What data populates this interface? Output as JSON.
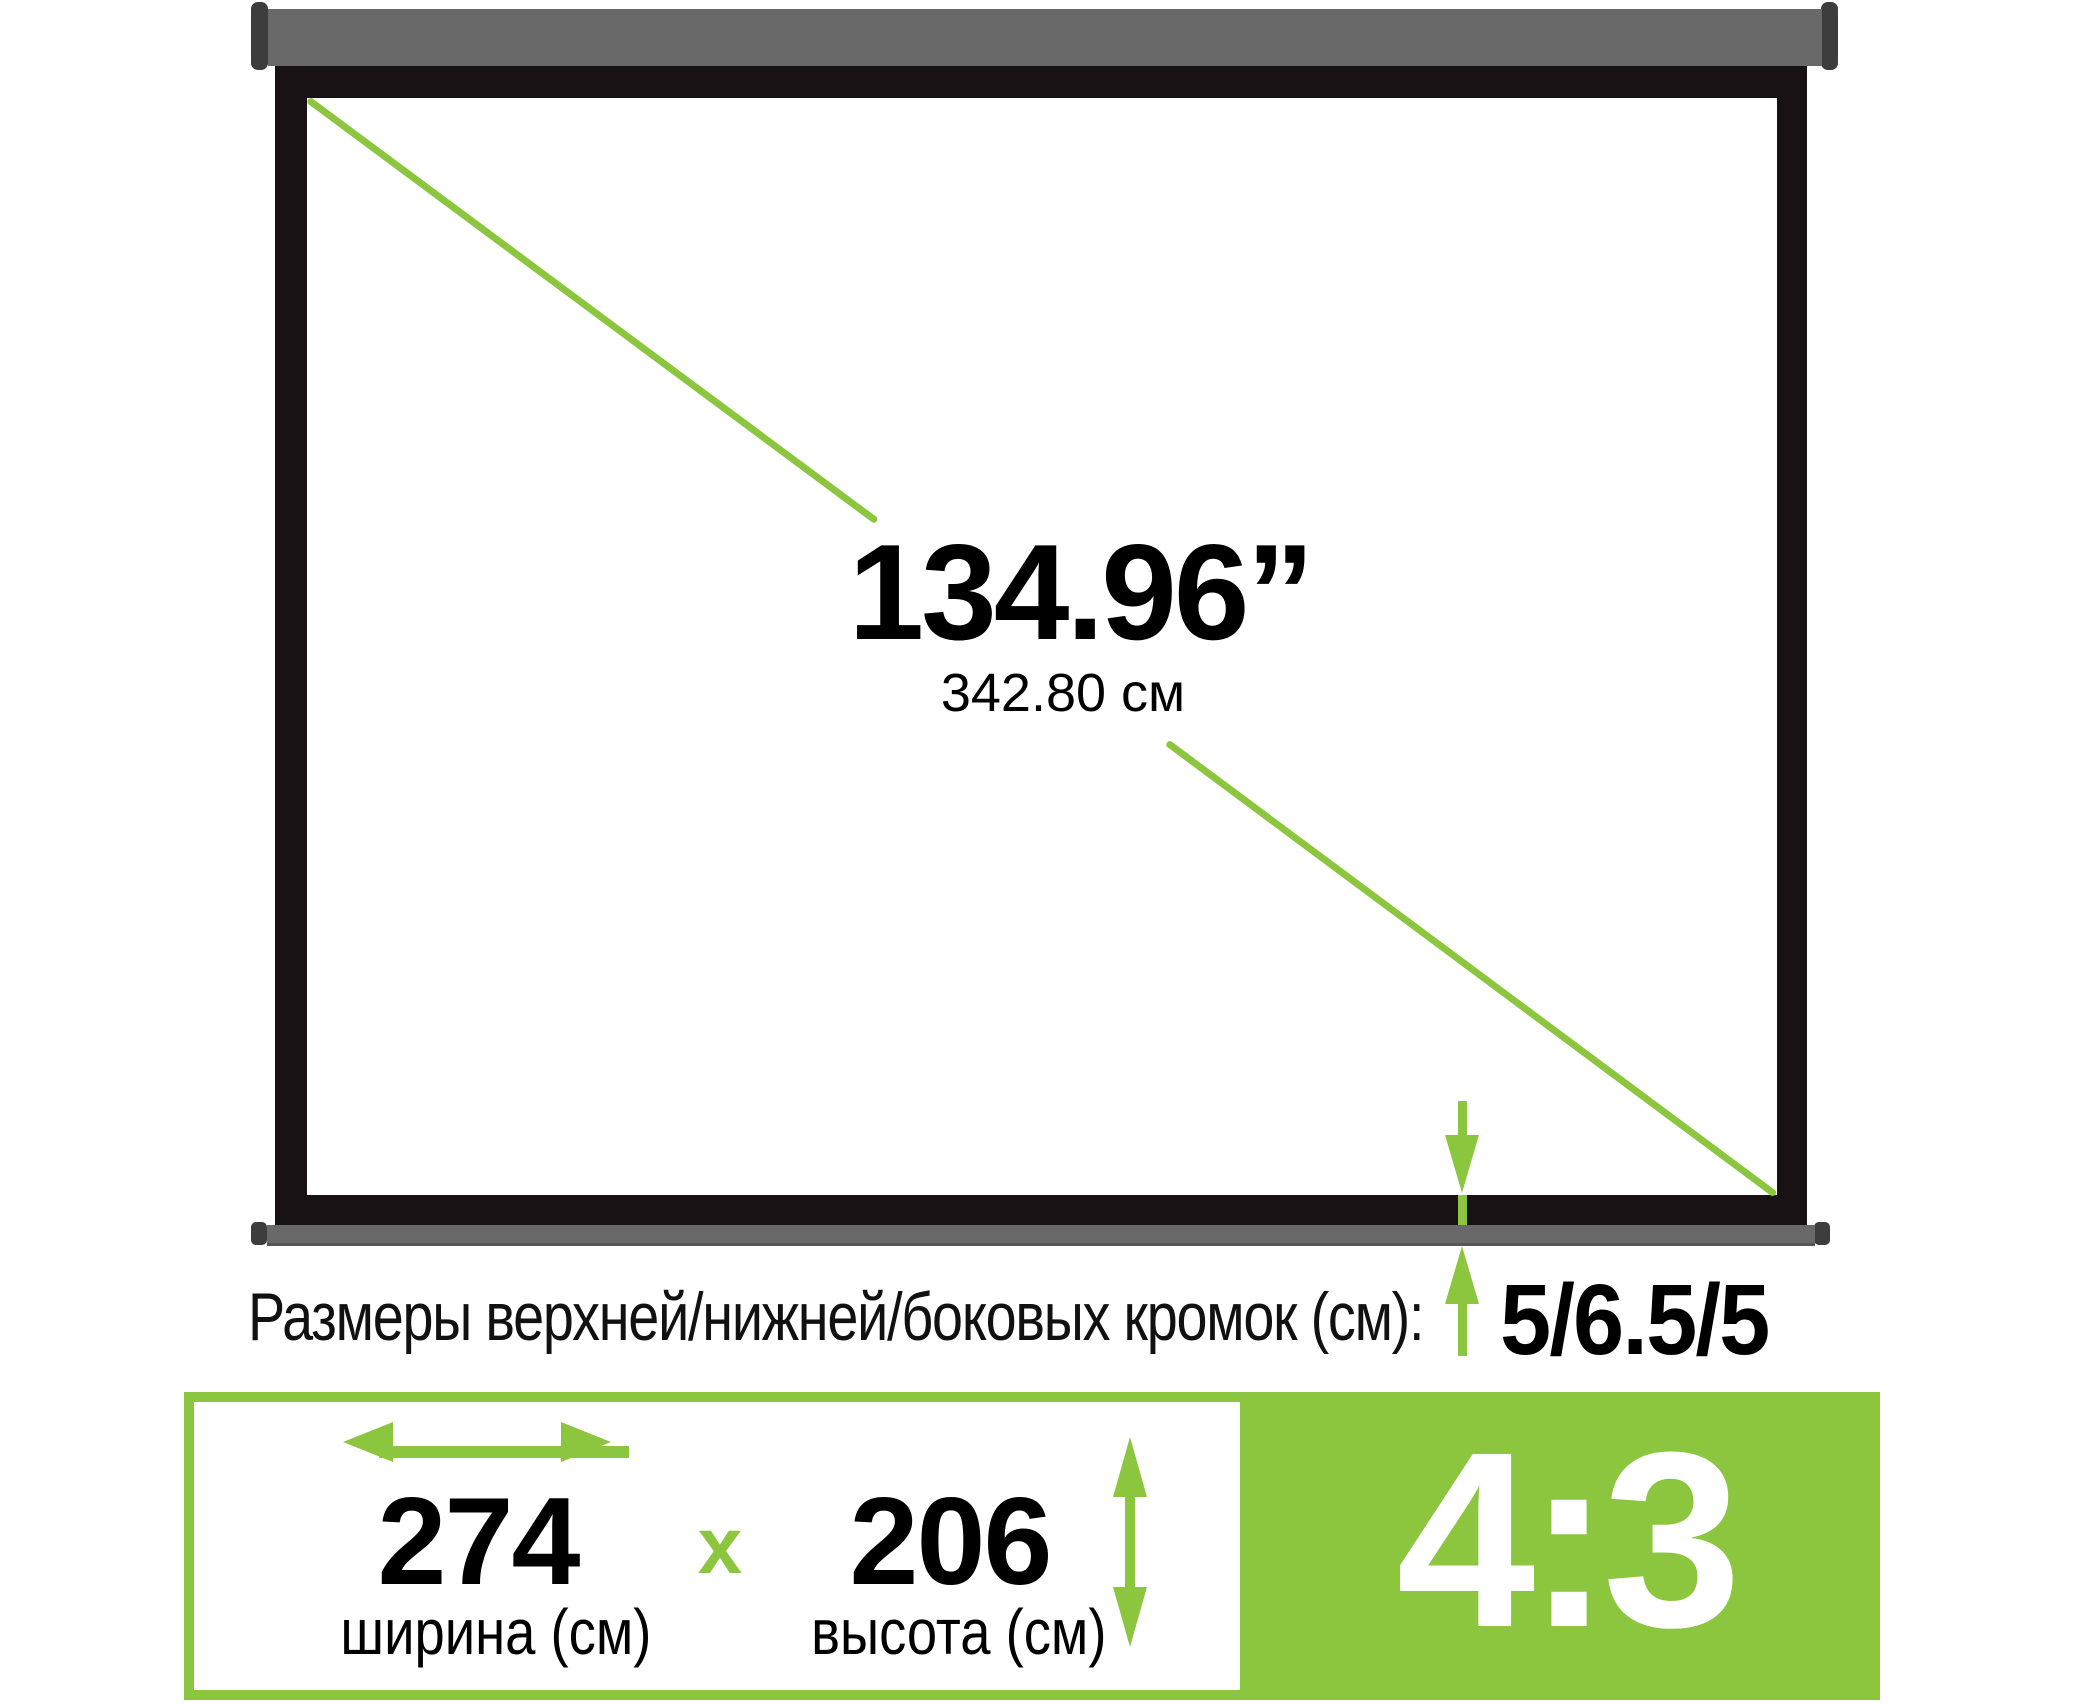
{
  "screen": {
    "diagonal_inches": "134.96”",
    "diagonal_cm": "342.80 см"
  },
  "edge_note": {
    "label": "Размеры верхней/нижней/боковых кромок (см):",
    "value": "5/6.5/5"
  },
  "banner": {
    "width_value": "274",
    "width_label": "ширина (см)",
    "separator": "x",
    "height_value": "206",
    "height_label": "высота (см)",
    "aspect_ratio": "4:3"
  },
  "colors": {
    "accent_green": "#8CC63F",
    "frame_black": "#181215",
    "casing_gray": "#696969",
    "cap_dark_gray": "#3D3D3D"
  }
}
